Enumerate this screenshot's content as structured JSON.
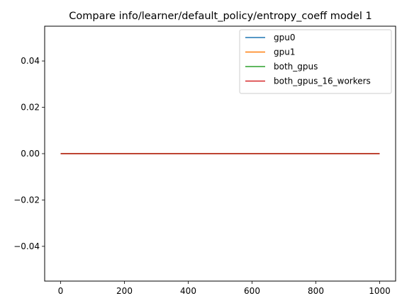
{
  "chart_data": {
    "type": "line",
    "title": "Compare info/learner/default_policy/entropy_coeff model 1",
    "xlabel": "",
    "ylabel": "",
    "xlim": [
      -50,
      1050
    ],
    "ylim": [
      -0.055,
      0.055
    ],
    "xticks": [
      0,
      200,
      400,
      600,
      800,
      1000
    ],
    "xtick_labels": [
      "0",
      "200",
      "400",
      "600",
      "800",
      "1000"
    ],
    "yticks": [
      -0.04,
      -0.02,
      0.0,
      0.02,
      0.04
    ],
    "ytick_labels": [
      "−0.04",
      "−0.02",
      "0.00",
      "0.02",
      "0.04"
    ],
    "grid": false,
    "legend_position": "top-right",
    "series": [
      {
        "name": "gpu0",
        "color": "#1f77b4",
        "x": [
          0,
          1000
        ],
        "y": [
          0.0,
          0.0
        ]
      },
      {
        "name": "gpu1",
        "color": "#ff7f0e",
        "x": [
          0,
          1000
        ],
        "y": [
          0.0,
          0.0
        ]
      },
      {
        "name": "both_gpus",
        "color": "#2ca02c",
        "x": [
          0,
          1000
        ],
        "y": [
          0.0,
          0.0
        ]
      },
      {
        "name": "both_gpus_16_workers",
        "color": "#d62728",
        "x": [
          0,
          1000
        ],
        "y": [
          0.0,
          0.0
        ]
      }
    ]
  }
}
